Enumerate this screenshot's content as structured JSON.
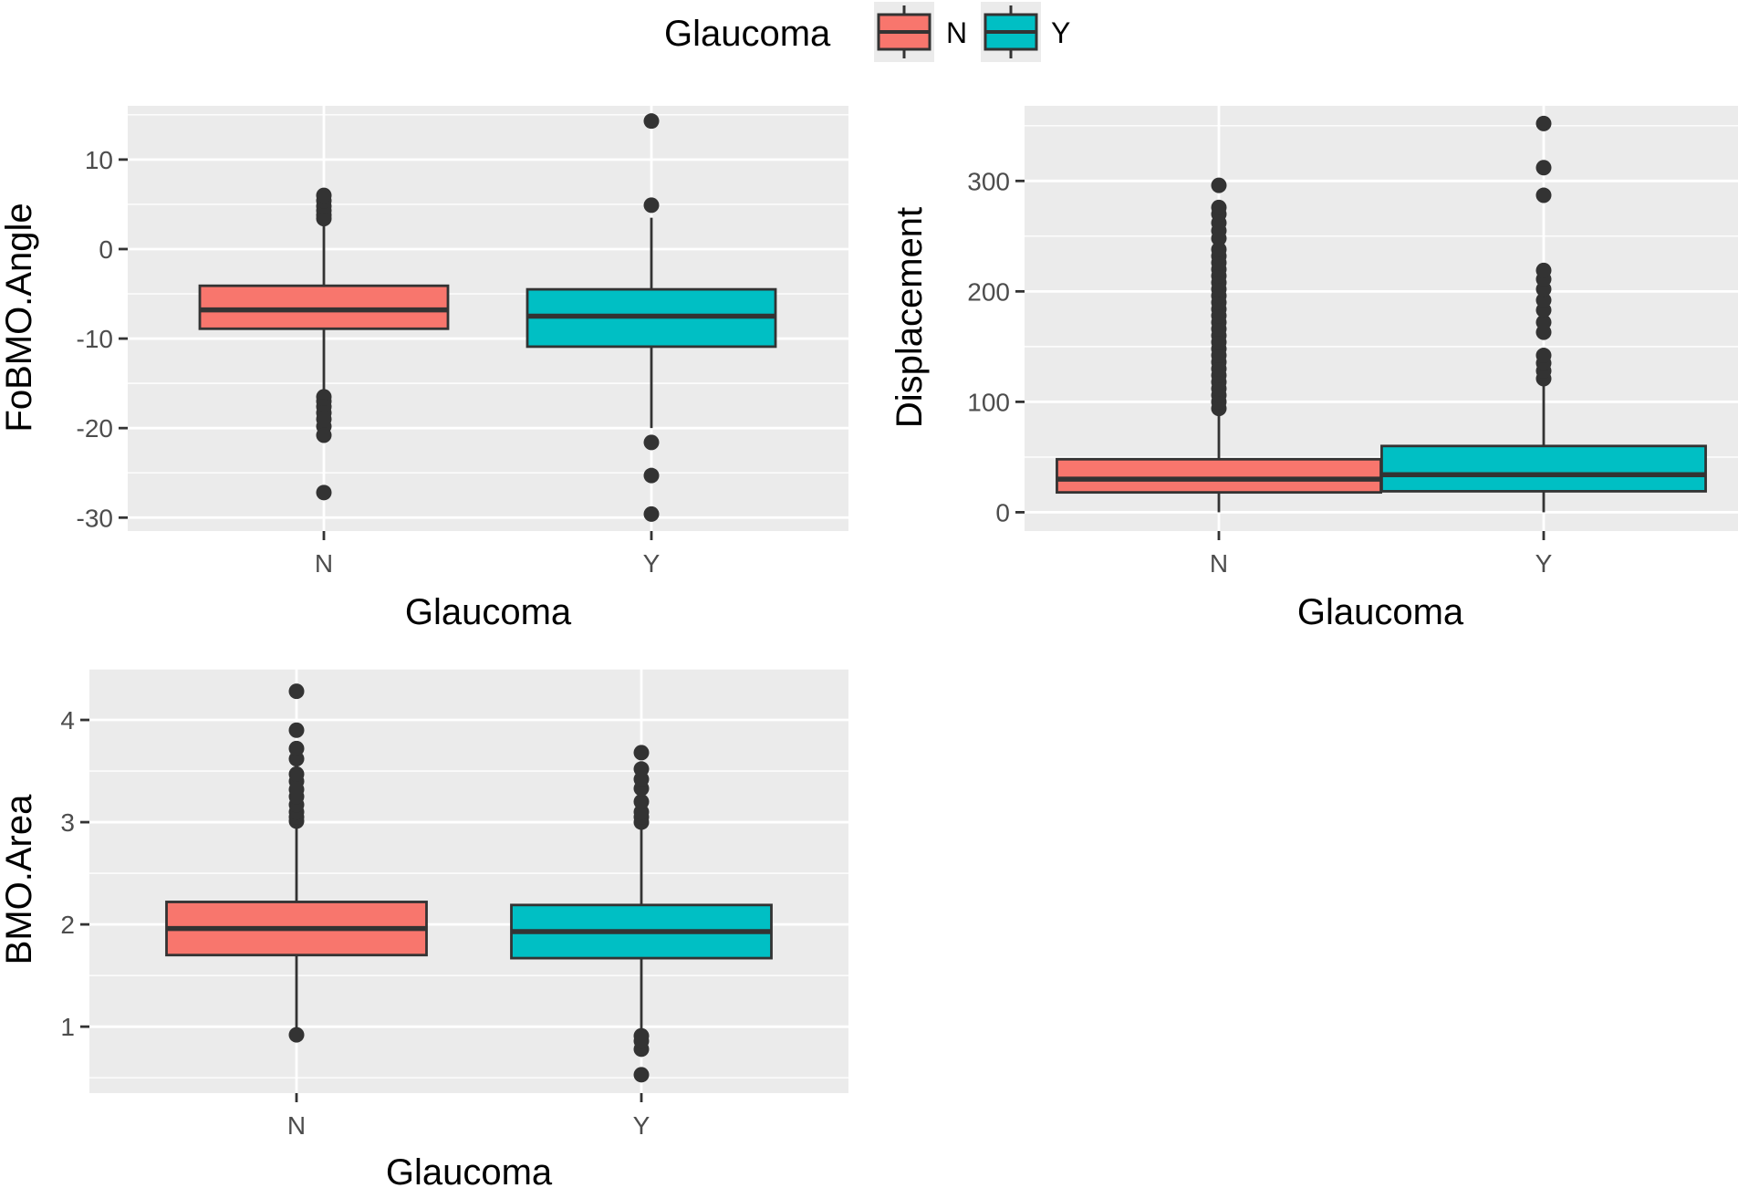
{
  "legend": {
    "title": "Glaucoma",
    "items": [
      {
        "label": "N",
        "color": "#F8766D"
      },
      {
        "label": "Y",
        "color": "#00BFC4"
      }
    ]
  },
  "chart_data": [
    {
      "type": "box",
      "xlabel": "Glaucoma",
      "ylabel": "FoBMO.Angle",
      "categories": [
        "N",
        "Y"
      ],
      "ylim": [
        -31.5,
        16
      ],
      "yticks": [
        -30,
        -20,
        -10,
        0,
        10
      ],
      "boxes": [
        {
          "category": "N",
          "whisker_low": -16.3,
          "q1": -8.9,
          "median": -6.8,
          "q3": -4.1,
          "whisker_high": 3.0,
          "outliers": [
            3.4,
            3.8,
            4.3,
            4.8,
            5.4,
            6.0,
            -16.5,
            -17.0,
            -17.6,
            -18.3,
            -19.0,
            -19.8,
            -20.8,
            -27.2
          ]
        },
        {
          "category": "Y",
          "whisker_low": -20.0,
          "q1": -10.9,
          "median": -7.5,
          "q3": -4.5,
          "whisker_high": 3.5,
          "outliers": [
            14.3,
            4.9,
            -21.6,
            -25.3,
            -29.6
          ]
        }
      ]
    },
    {
      "type": "box",
      "xlabel": "Glaucoma",
      "ylabel": "Displacement",
      "categories": [
        "N",
        "Y"
      ],
      "ylim": [
        -17,
        368
      ],
      "yticks": [
        0,
        100,
        200,
        300
      ],
      "boxes": [
        {
          "category": "N",
          "whisker_low": 0,
          "q1": 18,
          "median": 30,
          "q3": 48,
          "whisker_high": 90,
          "outliers": [
            94,
            100,
            106,
            112,
            118,
            124,
            130,
            136,
            142,
            148,
            154,
            160,
            166,
            172,
            178,
            184,
            190,
            196,
            202,
            208,
            214,
            220,
            226,
            232,
            238,
            248,
            255,
            262,
            270,
            276,
            296
          ]
        },
        {
          "category": "Y",
          "whisker_low": 0,
          "q1": 19,
          "median": 34,
          "q3": 60,
          "whisker_high": 117,
          "outliers": [
            121,
            128,
            135,
            142,
            163,
            172,
            183,
            192,
            202,
            211,
            219,
            287,
            312,
            352
          ]
        }
      ]
    },
    {
      "type": "box",
      "xlabel": "Glaucoma",
      "ylabel": "BMO.Area",
      "categories": [
        "N",
        "Y"
      ],
      "ylim": [
        0.35,
        4.5
      ],
      "yticks": [
        1,
        2,
        3,
        4
      ],
      "boxes": [
        {
          "category": "N",
          "whisker_low": 0.97,
          "q1": 1.7,
          "median": 1.96,
          "q3": 2.22,
          "whisker_high": 2.97,
          "outliers": [
            0.92,
            3.01,
            3.05,
            3.1,
            3.17,
            3.25,
            3.32,
            3.4,
            3.47,
            3.62,
            3.72,
            3.9,
            4.28
          ]
        },
        {
          "category": "Y",
          "whisker_low": 0.95,
          "q1": 1.67,
          "median": 1.93,
          "q3": 2.19,
          "whisker_high": 2.97,
          "outliers": [
            0.53,
            0.78,
            0.86,
            0.91,
            3.0,
            3.05,
            3.1,
            3.2,
            3.33,
            3.42,
            3.52,
            3.68
          ]
        }
      ]
    }
  ]
}
